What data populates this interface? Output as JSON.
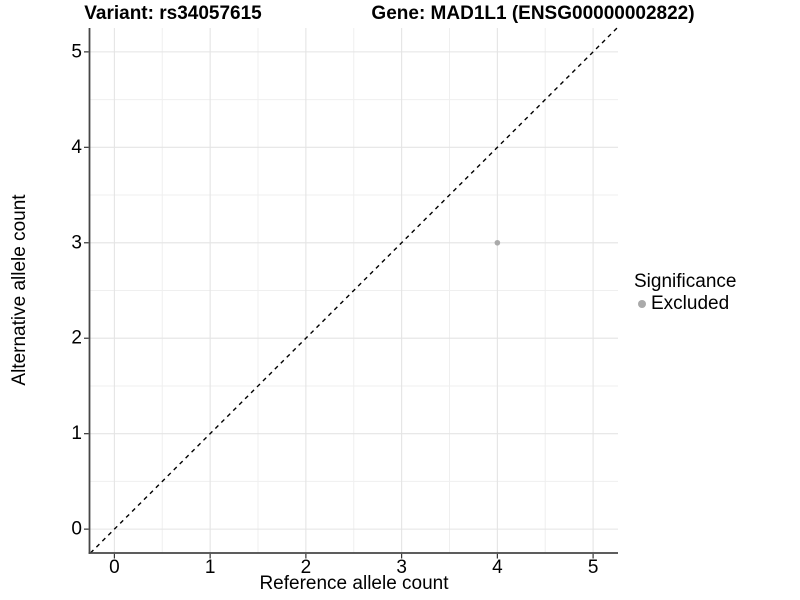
{
  "chart_data": {
    "type": "scatter",
    "titles": {
      "left": "Variant: rs34057615",
      "right": "Gene: MAD1L1 (ENSG00000002822)"
    },
    "xlabel": "Reference allele count",
    "ylabel": "Alternative allele count",
    "xlim": [
      -0.26,
      5.26
    ],
    "ylim": [
      -0.25,
      5.25
    ],
    "xticks": [
      0,
      1,
      2,
      3,
      4,
      5
    ],
    "yticks": [
      0,
      1,
      2,
      3,
      4,
      5
    ],
    "minor_ticks": [
      0.5,
      1.5,
      2.5,
      3.5,
      4.5
    ],
    "grid": {
      "show": true,
      "major_color": "#e4e4e4",
      "minor_color": "#efefef"
    },
    "axis_line_color": "#464646",
    "identity_line": {
      "style": "dashed",
      "color": "#000000",
      "from": -0.25,
      "to": 5.25
    },
    "series": [
      {
        "name": "Excluded",
        "color": "#aaaaaa",
        "points": [
          {
            "x": 4,
            "y": 3
          }
        ]
      }
    ],
    "legend": {
      "title": "Significance",
      "position": "right",
      "items": [
        {
          "label": "Excluded",
          "color": "#aaaaaa"
        }
      ]
    }
  }
}
